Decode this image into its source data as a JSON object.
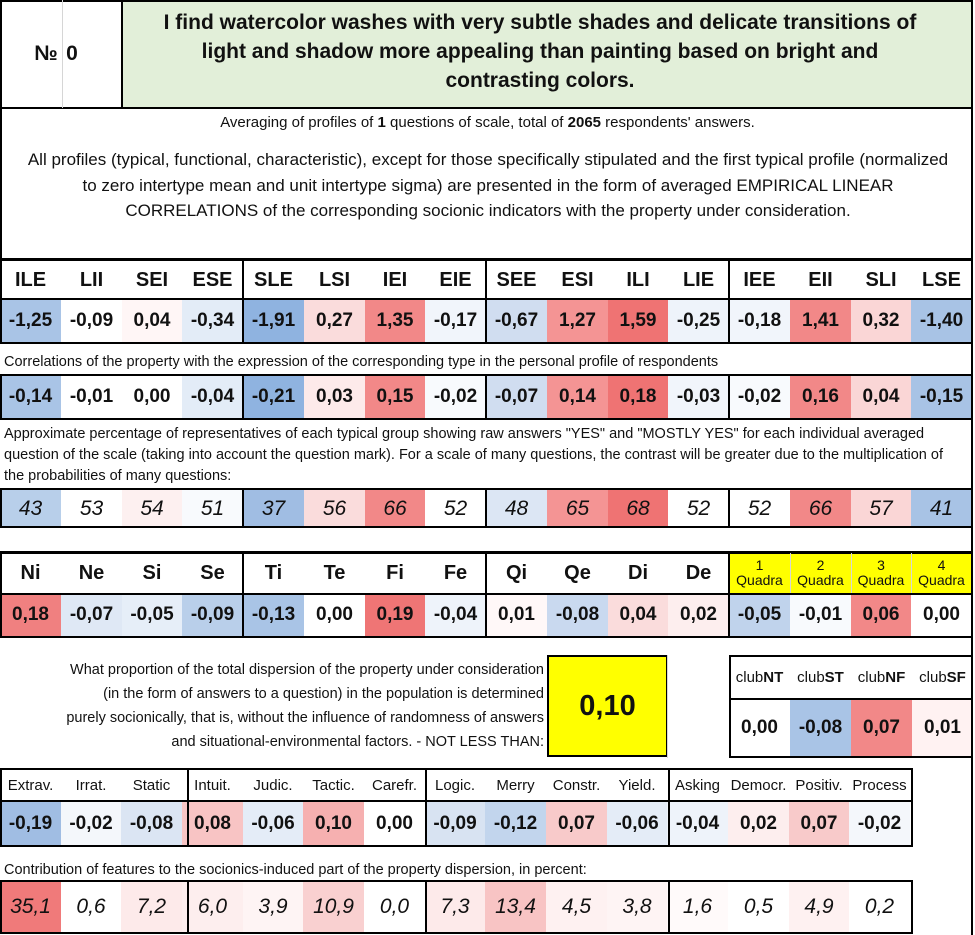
{
  "header": {
    "number_label": "№",
    "number_value": "0",
    "title": "I find watercolor washes with very subtle shades and delicate transitions of light and shadow more appealing than painting based on bright and contrasting colors."
  },
  "summary": {
    "prefix": "Averaging of profiles of ",
    "questions": "1",
    "middle": " questions of scale, total of ",
    "respondents": "2065",
    "suffix": " respondents' answers."
  },
  "description": "All profiles (typical, functional, characteristic), except for those specifically stipulated and the first typical profile (normalized to zero intertype mean and unit intertype sigma) are presented in the form of averaged EMPIRICAL LINEAR CORRELATIONS of the corresponding socionic indicators with the property under consideration.",
  "types": {
    "headers": [
      "ILE",
      "LII",
      "SEI",
      "ESE",
      "SLE",
      "LSI",
      "IEI",
      "EIE",
      "SEE",
      "ESI",
      "ILI",
      "LIE",
      "IEE",
      "EII",
      "SLI",
      "LSE"
    ],
    "values": [
      "-1,25",
      "-0,09",
      "0,04",
      "-0,34",
      "-1,91",
      "0,27",
      "1,35",
      "-0,17",
      "-0,67",
      "1,27",
      "1,59",
      "-0,25",
      "-0,18",
      "1,41",
      "0,32",
      "-1,40"
    ],
    "colors": [
      "#a9c4e6",
      "#ffffff",
      "#fff6f6",
      "#e3ecf7",
      "#8fb3e0",
      "#fadcdc",
      "#f28888",
      "#f1f5fb",
      "#d0ddf0",
      "#f49494",
      "#ef7373",
      "#eef3fa",
      "#f1f5fb",
      "#f28888",
      "#fad6d6",
      "#a8c3e5"
    ]
  },
  "correlations_note": "Correlations of the property with the expression of the corresponding type in the personal profile of respondents",
  "correlations": {
    "values": [
      "-0,14",
      "-0,01",
      "0,00",
      "-0,04",
      "-0,21",
      "0,03",
      "0,15",
      "-0,02",
      "-0,07",
      "0,14",
      "0,18",
      "-0,03",
      "-0,02",
      "0,16",
      "0,04",
      "-0,15"
    ],
    "colors": [
      "#a9c4e6",
      "#ffffff",
      "#ffffff",
      "#e3ecf7",
      "#8fb3e0",
      "#fdeaea",
      "#f28888",
      "#f8fafd",
      "#d0ddf0",
      "#f49494",
      "#ef7373",
      "#f1f5fb",
      "#f8fafd",
      "#f28888",
      "#fad6d6",
      "#a8c3e5"
    ]
  },
  "percent_note": "Approximate percentage of representatives of each typical group showing raw answers \"YES\" and \"MOSTLY YES\" for each individual averaged question of the scale (taking into account the question mark). For a scale of many questions, the contrast will be greater due to the multiplication of the probabilities of many questions:",
  "percentages": {
    "values": [
      "43",
      "53",
      "54",
      "51",
      "37",
      "56",
      "66",
      "52",
      "48",
      "65",
      "68",
      "52",
      "52",
      "66",
      "57",
      "41"
    ],
    "colors": [
      "#b8cfea",
      "#ffffff",
      "#fdf0f0",
      "#f8fafd",
      "#a0bde3",
      "#fadcdc",
      "#f28888",
      "#ffffff",
      "#dce6f4",
      "#f49494",
      "#ef7373",
      "#ffffff",
      "#ffffff",
      "#f28888",
      "#fad6d6",
      "#a8c3e5"
    ]
  },
  "functions": {
    "headers": [
      "Ni",
      "Ne",
      "Si",
      "Se",
      "Ti",
      "Te",
      "Fi",
      "Fe",
      "Qi",
      "Qe",
      "Di",
      "De"
    ],
    "values": [
      "0,18",
      "-0,07",
      "-0,05",
      "-0,09",
      "-0,13",
      "0,00",
      "0,19",
      "-0,04",
      "0,01",
      "-0,08",
      "0,04",
      "0,02"
    ],
    "colors": [
      "#f08080",
      "#dfe8f5",
      "#e6eef8",
      "#b9cfea",
      "#a9c4e6",
      "#ffffff",
      "#ef7575",
      "#eef3fa",
      "#fff8f8",
      "#c9d9ef",
      "#fadcdc",
      "#fdeeee"
    ]
  },
  "quadras": {
    "headers": [
      {
        "num": "1",
        "label": "Quadra"
      },
      {
        "num": "2",
        "label": "Quadra"
      },
      {
        "num": "3",
        "label": "Quadra"
      },
      {
        "num": "4",
        "label": "Quadra"
      }
    ],
    "values": [
      "-0,05",
      "-0,01",
      "0,06",
      "0,00"
    ],
    "colors": [
      "#c0d3ec",
      "#f8fafd",
      "#f28888",
      "#ffffff"
    ],
    "header_color": "#ffff00"
  },
  "dispersion": {
    "text_lines": [
      "What proportion of the total dispersion of the property under consideration",
      "(in the form of answers to a question) in the population is determined",
      "purely socionically, that is, without the influence of randomness of answers",
      "and situational-environmental factors. - NOT LESS THAN:"
    ],
    "value": "0,10",
    "value_color": "#ffff00"
  },
  "clubs": {
    "headers": [
      {
        "prefix": "club",
        "bold": "NT"
      },
      {
        "prefix": "club",
        "bold": "ST"
      },
      {
        "prefix": "club",
        "bold": "NF"
      },
      {
        "prefix": "club",
        "bold": "SF"
      }
    ],
    "values": [
      "0,00",
      "-0,08",
      "0,07",
      "0,01"
    ],
    "colors": [
      "#ffffff",
      "#a9c4e6",
      "#f28888",
      "#fff2f2"
    ]
  },
  "traits": {
    "headers": [
      "Extrav.",
      "Irrat.",
      "Static",
      "Intuit.",
      "Judic.",
      "Tactic.",
      "Carefr.",
      "Logic.",
      "Merry",
      "Constr.",
      "Yield.",
      "Asking",
      "Democr.",
      "Positiv.",
      "Process"
    ],
    "values": [
      "-0,19",
      "-0,02",
      "-0,08",
      "0,08",
      "-0,06",
      "0,10",
      "0,00",
      "-0,09",
      "-0,12",
      "0,07",
      "-0,06",
      "-0,04",
      "0,02",
      "0,07",
      "-0,02"
    ],
    "colors": [
      "#a0bde3",
      "#f4f7fb",
      "#dbe5f3",
      "#f8c4c4",
      "#e4ecf7",
      "#f6b0b0",
      "#ffffff",
      "#d8e3f2",
      "#c2d5ed",
      "#f8caca",
      "#e4ecf7",
      "#eef3fa",
      "#fdeeee",
      "#f8caca",
      "#f4f7fb"
    ]
  },
  "contribution_note": "Contribution of features to the socionics-induced part of the property dispersion, in percent:",
  "contributions": {
    "values": [
      "35,1",
      "0,6",
      "7,2",
      "6,0",
      "3,9",
      "10,9",
      "0,0",
      "7,3",
      "13,4",
      "4,5",
      "3,8",
      "1,6",
      "0,5",
      "4,9",
      "0,2"
    ],
    "colors": [
      "#f07a7a",
      "#ffffff",
      "#fdeaea",
      "#fdeeee",
      "#fef4f4",
      "#f9d0d0",
      "#ffffff",
      "#fdeaea",
      "#f8c4c4",
      "#fef1f1",
      "#fef4f4",
      "#fffafa",
      "#ffffff",
      "#fef1f1",
      "#ffffff"
    ]
  }
}
